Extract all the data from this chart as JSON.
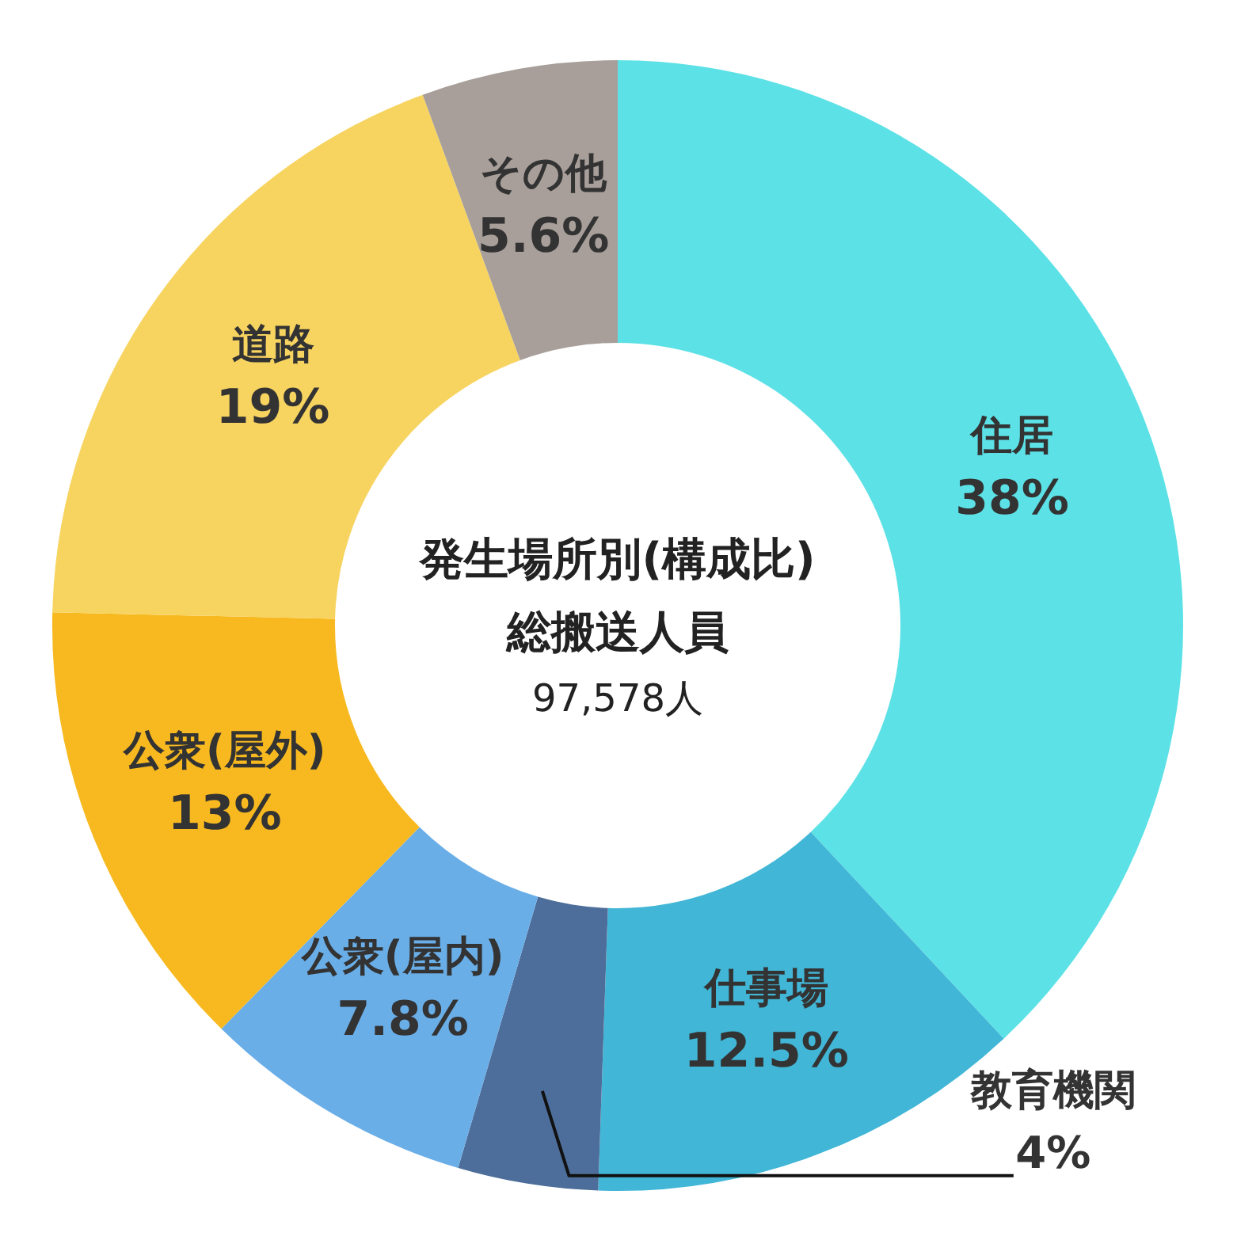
{
  "chart_data": {
    "type": "donut",
    "title": "発生場所別(構成比)",
    "subtitle": "総搬送人員",
    "annotations": [
      "97,578人"
    ],
    "categories": [
      "住居",
      "仕事場",
      "教育機関",
      "公衆(屋内)",
      "公衆(屋外)",
      "道路",
      "その他"
    ],
    "values": [
      38,
      12.5,
      4,
      7.8,
      13,
      19,
      5.6
    ],
    "value_labels": [
      "38%",
      "12.5%",
      "4%",
      "7.8%",
      "13%",
      "19%",
      "5.6%"
    ],
    "colors": [
      "#5ce1e6",
      "#41b6d6",
      "#4d6e9a",
      "#6aaee8",
      "#f7b91f",
      "#f7d460",
      "#a89f9a"
    ]
  }
}
